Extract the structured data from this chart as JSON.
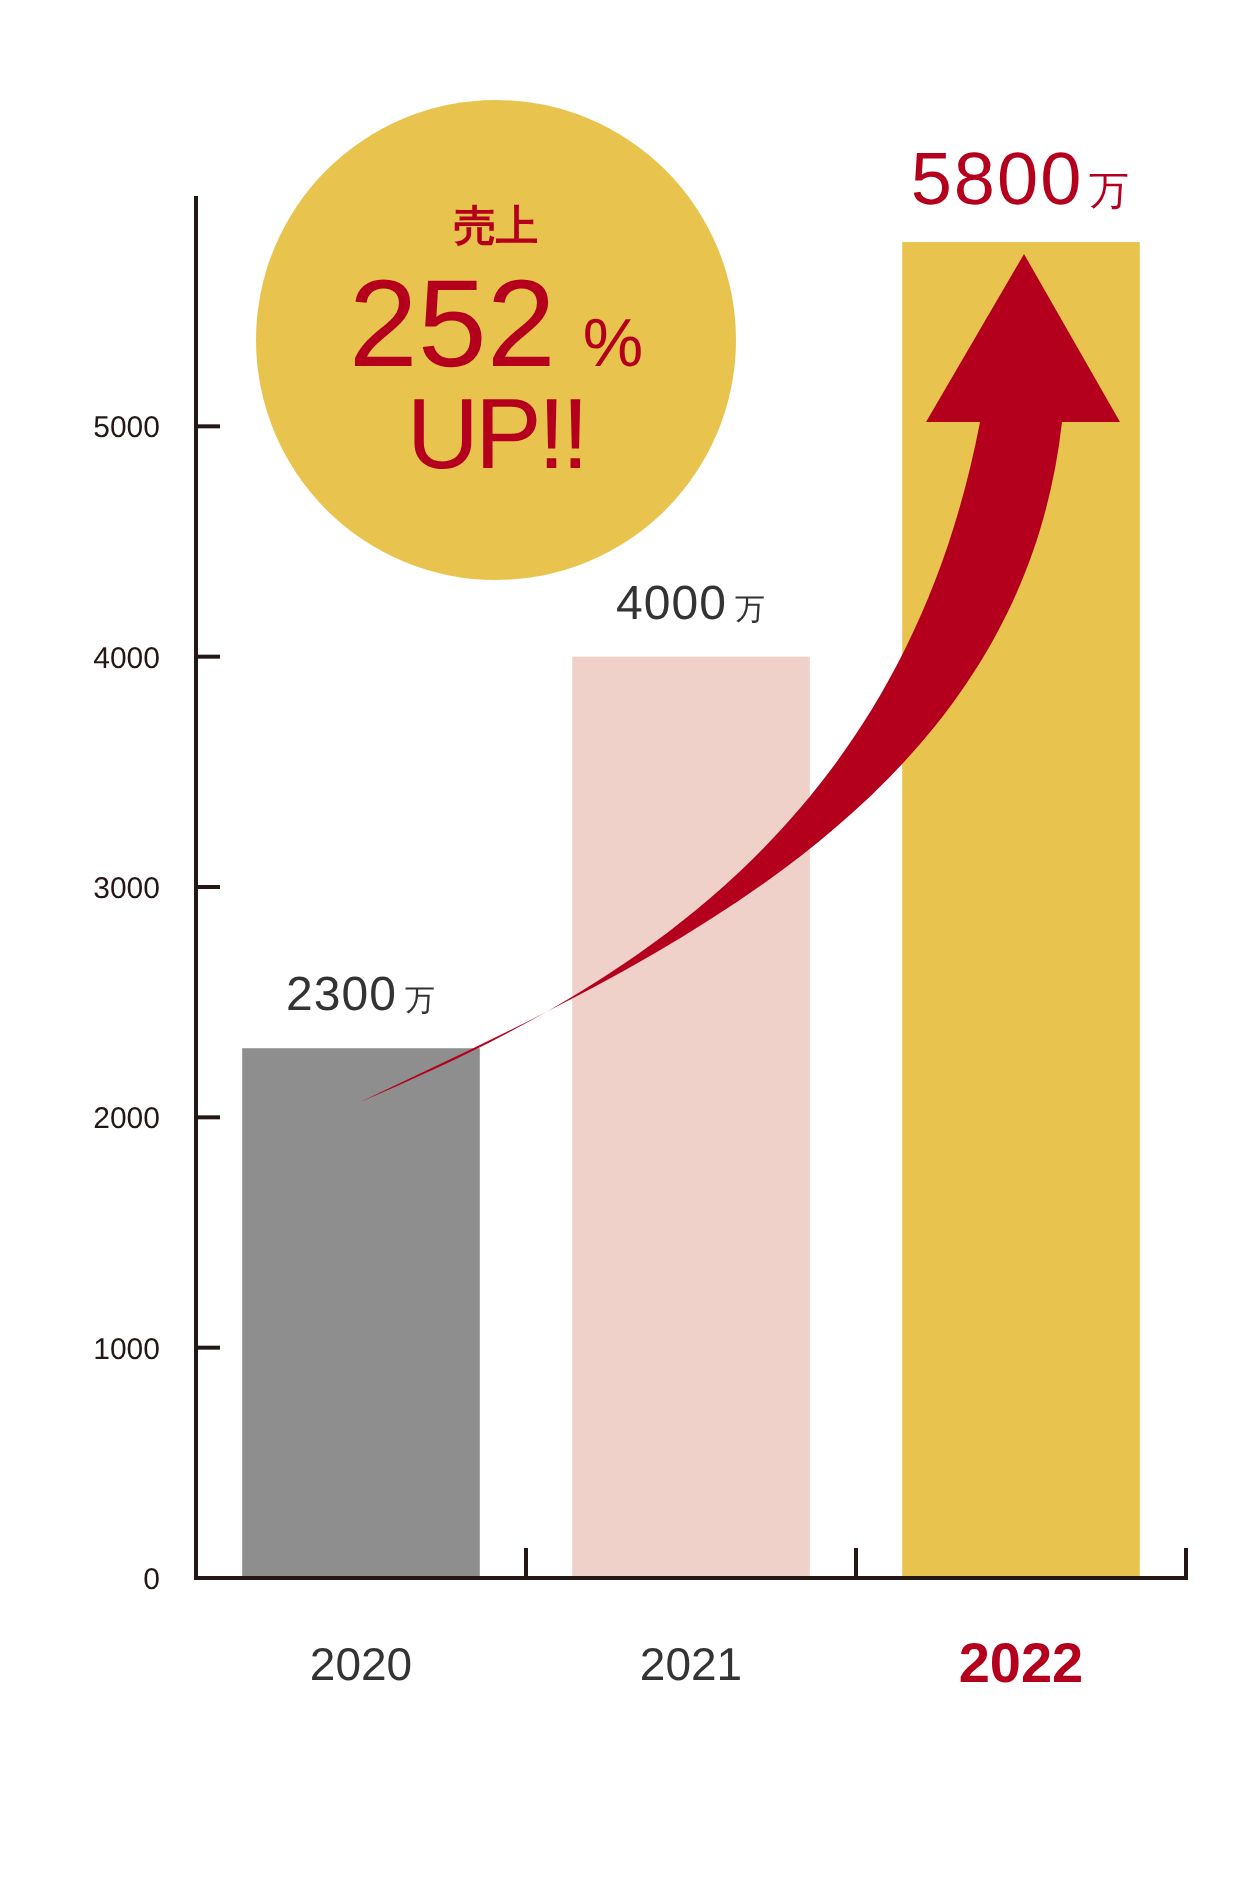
{
  "chart_data": {
    "type": "bar",
    "categories": [
      "2020",
      "2021",
      "2022"
    ],
    "values": [
      2300,
      4000,
      5800
    ],
    "colors": [
      "#8e8e8e",
      "#f0d1ca",
      "#e8c44e"
    ],
    "value_labels": [
      "2300万",
      "4000万",
      "5800万"
    ],
    "ylim": [
      0,
      6000
    ],
    "yticks": [
      0,
      1000,
      2000,
      3000,
      4000,
      5000
    ],
    "annotations": [
      "売上",
      "252 %",
      "UP!!"
    ]
  }
}
